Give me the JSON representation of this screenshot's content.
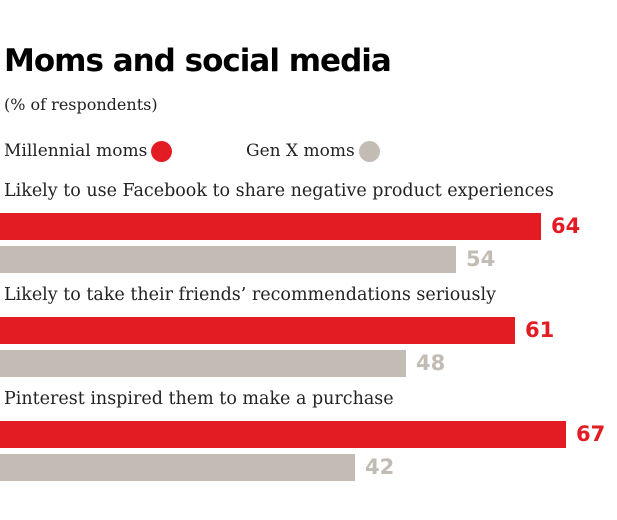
{
  "chart_data": {
    "type": "bar",
    "orientation": "horizontal",
    "title": "Moms and social media",
    "subtitle": "(% of respondents)",
    "categories": [
      "Likely to use Facebook to share negative product experiences",
      "Likely to take their friends’ recommendations seriously",
      "Pinterest inspired them to make a purchase"
    ],
    "series": [
      {
        "name": "Millennial moms",
        "color": "#e31b23",
        "values": [
          64,
          61,
          67
        ]
      },
      {
        "name": "Gen X moms",
        "color": "#c2bcb4",
        "values": [
          54,
          48,
          42
        ]
      }
    ],
    "data_labels": [
      [
        "64",
        "61",
        "67"
      ],
      [
        "54",
        "48",
        "42"
      ]
    ],
    "legend": "top-left",
    "grid": false,
    "xlabel": "",
    "ylabel": ""
  }
}
